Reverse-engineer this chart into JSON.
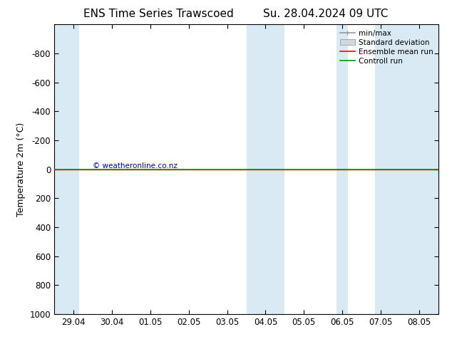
{
  "title_left": "ENS Time Series Trawscoed",
  "title_right": "Su. 28.04.2024 09 UTC",
  "ylabel": "Temperature 2m (°C)",
  "ylim_bottom": 1000,
  "ylim_top": -1000,
  "yticks": [
    -800,
    -600,
    -400,
    -200,
    0,
    200,
    400,
    600,
    800,
    1000
  ],
  "xtick_labels": [
    "29.04",
    "30.04",
    "01.05",
    "02.05",
    "03.05",
    "04.05",
    "05.05",
    "06.05",
    "07.05",
    "08.05"
  ],
  "xtick_positions": [
    0,
    1,
    2,
    3,
    4,
    5,
    6,
    7,
    8,
    9
  ],
  "xlim": [
    -0.5,
    9.5
  ],
  "shaded_bands": [
    [
      -0.5,
      0.15
    ],
    [
      4.5,
      5.5
    ],
    [
      6.85,
      7.15
    ],
    [
      7.85,
      9.5
    ]
  ],
  "shaded_color": "#daeaf5",
  "green_line_y": 0,
  "red_line_y": 0,
  "copyright_text": "© weatheronline.co.nz",
  "copyright_color": "#0000bb",
  "legend_labels": [
    "min/max",
    "Standard deviation",
    "Ensemble mean run",
    "Controll run"
  ],
  "legend_line_colors": [
    "#999999",
    "#bbbbbb",
    "#ff0000",
    "#009900"
  ],
  "bg_color": "#ffffff",
  "title_fontsize": 11,
  "axis_fontsize": 8.5,
  "ylabel_fontsize": 9
}
